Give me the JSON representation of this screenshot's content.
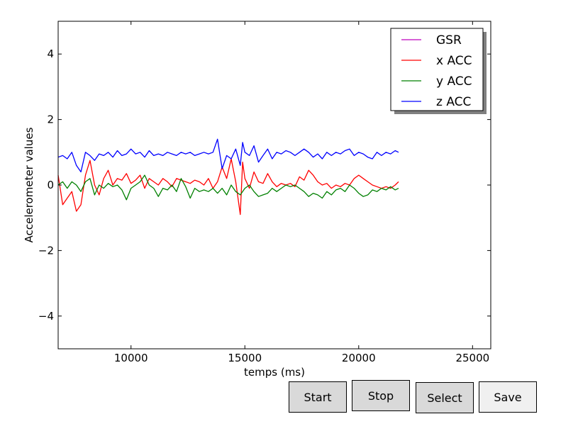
{
  "chart_data": {
    "type": "line",
    "title": "",
    "xlabel": "temps (ms)",
    "ylabel": "Accelerometer values",
    "xlim": [
      6800,
      25800
    ],
    "ylim": [
      -5,
      5
    ],
    "xticks": [
      10000,
      15000,
      20000,
      25000
    ],
    "xtick_labels": [
      "10000",
      "15000",
      "20000",
      "25000"
    ],
    "yticks": [
      -4,
      -2,
      0,
      2,
      4
    ],
    "ytick_labels": [
      "−4",
      "−2",
      "0",
      "2",
      "4"
    ],
    "grid": false,
    "legend_position": "top-right",
    "series": [
      {
        "name": "GSR",
        "color": "#bf00bf",
        "x": [],
        "y": []
      },
      {
        "name": "x ACC",
        "color": "#ff0000",
        "x": [
          6800,
          7000,
          7200,
          7400,
          7600,
          7800,
          8000,
          8200,
          8400,
          8600,
          8800,
          9000,
          9200,
          9400,
          9600,
          9800,
          10000,
          10200,
          10400,
          10600,
          10800,
          11000,
          11200,
          11400,
          11600,
          11800,
          12000,
          12200,
          12400,
          12600,
          12800,
          13000,
          13200,
          13400,
          13600,
          13800,
          14000,
          14200,
          14400,
          14600,
          14800,
          14900,
          15000,
          15200,
          15400,
          15600,
          15800,
          16000,
          16200,
          16400,
          16600,
          16800,
          17000,
          17200,
          17400,
          17600,
          17800,
          18000,
          18200,
          18400,
          18600,
          18800,
          19000,
          19200,
          19400,
          19600,
          19800,
          20000,
          20200,
          20400,
          20600,
          20800,
          21000,
          21200,
          21400,
          21600,
          21750
        ],
        "y": [
          0.3,
          -0.6,
          -0.4,
          -0.2,
          -0.8,
          -0.6,
          0.3,
          0.75,
          0.0,
          -0.3,
          0.2,
          0.45,
          0.0,
          0.2,
          0.15,
          0.35,
          0.05,
          0.15,
          0.3,
          -0.1,
          0.2,
          0.1,
          0.0,
          0.2,
          0.1,
          -0.05,
          0.2,
          0.15,
          0.1,
          0.05,
          0.15,
          0.1,
          0.0,
          0.2,
          -0.1,
          0.1,
          0.55,
          0.2,
          0.8,
          0.1,
          -0.9,
          0.7,
          0.2,
          -0.1,
          0.4,
          0.1,
          0.05,
          0.35,
          0.1,
          -0.05,
          0.05,
          0.0,
          0.05,
          -0.05,
          0.25,
          0.15,
          0.45,
          0.3,
          0.1,
          0.0,
          0.05,
          -0.1,
          0.0,
          -0.05,
          0.05,
          0.0,
          0.2,
          0.3,
          0.2,
          0.1,
          0.0,
          -0.05,
          -0.1,
          -0.05,
          -0.1,
          0.0,
          0.1
        ]
      },
      {
        "name": "y ACC",
        "color": "#008000",
        "x": [
          6800,
          7000,
          7200,
          7400,
          7600,
          7800,
          8000,
          8200,
          8400,
          8600,
          8800,
          9000,
          9200,
          9400,
          9600,
          9800,
          10000,
          10200,
          10400,
          10600,
          10800,
          11000,
          11200,
          11400,
          11600,
          11800,
          12000,
          12200,
          12400,
          12600,
          12800,
          13000,
          13200,
          13400,
          13600,
          13800,
          14000,
          14200,
          14400,
          14600,
          14800,
          15000,
          15200,
          15400,
          15600,
          15800,
          16000,
          16200,
          16400,
          16600,
          16800,
          17000,
          17200,
          17400,
          17600,
          17800,
          18000,
          18200,
          18400,
          18600,
          18800,
          19000,
          19200,
          19400,
          19600,
          19800,
          20000,
          20200,
          20400,
          20600,
          20800,
          21000,
          21200,
          21400,
          21600,
          21750
        ],
        "y": [
          0.0,
          0.1,
          -0.1,
          0.1,
          0.0,
          -0.2,
          0.1,
          0.2,
          -0.3,
          0.0,
          -0.1,
          0.05,
          -0.05,
          0.0,
          -0.15,
          -0.45,
          -0.1,
          0.0,
          0.1,
          0.3,
          0.0,
          -0.1,
          -0.35,
          -0.1,
          -0.15,
          0.0,
          -0.2,
          0.2,
          -0.05,
          -0.4,
          -0.1,
          -0.2,
          -0.15,
          -0.2,
          -0.1,
          -0.25,
          -0.1,
          -0.3,
          0.0,
          -0.2,
          -0.3,
          -0.1,
          0.0,
          -0.2,
          -0.35,
          -0.3,
          -0.25,
          -0.1,
          -0.2,
          -0.1,
          0.0,
          -0.05,
          0.0,
          -0.1,
          -0.2,
          -0.35,
          -0.25,
          -0.3,
          -0.4,
          -0.2,
          -0.3,
          -0.15,
          -0.1,
          -0.2,
          0.0,
          -0.1,
          -0.25,
          -0.35,
          -0.3,
          -0.15,
          -0.2,
          -0.1,
          -0.15,
          -0.05,
          -0.15,
          -0.1
        ]
      },
      {
        "name": "z ACC",
        "color": "#0000ff",
        "x": [
          6800,
          7000,
          7200,
          7400,
          7600,
          7800,
          8000,
          8200,
          8400,
          8600,
          8800,
          9000,
          9200,
          9400,
          9600,
          9800,
          10000,
          10200,
          10400,
          10600,
          10800,
          11000,
          11200,
          11400,
          11600,
          11800,
          12000,
          12200,
          12400,
          12600,
          12800,
          13000,
          13200,
          13400,
          13600,
          13800,
          14000,
          14200,
          14400,
          14600,
          14800,
          14900,
          15000,
          15200,
          15400,
          15600,
          15800,
          16000,
          16200,
          16400,
          16600,
          16800,
          17000,
          17200,
          17400,
          17600,
          17800,
          18000,
          18200,
          18400,
          18600,
          18800,
          19000,
          19200,
          19400,
          19600,
          19800,
          20000,
          20200,
          20400,
          20600,
          20800,
          21000,
          21200,
          21400,
          21600,
          21750
        ],
        "y": [
          0.85,
          0.9,
          0.8,
          1.0,
          0.6,
          0.4,
          1.0,
          0.9,
          0.75,
          0.95,
          0.9,
          1.0,
          0.85,
          1.05,
          0.9,
          0.95,
          1.1,
          0.95,
          1.0,
          0.85,
          1.05,
          0.9,
          0.95,
          0.9,
          1.0,
          0.95,
          0.9,
          1.0,
          0.95,
          1.0,
          0.9,
          0.95,
          1.0,
          0.95,
          1.0,
          1.4,
          0.5,
          0.9,
          0.8,
          1.1,
          0.6,
          1.3,
          1.0,
          0.9,
          1.2,
          0.7,
          0.9,
          1.1,
          0.8,
          1.0,
          0.95,
          1.05,
          1.0,
          0.9,
          1.0,
          1.1,
          1.0,
          0.85,
          0.95,
          0.8,
          1.0,
          0.9,
          1.0,
          0.95,
          1.05,
          1.1,
          0.9,
          1.0,
          0.95,
          0.85,
          0.8,
          1.0,
          0.9,
          1.0,
          0.95,
          1.05,
          1.0
        ]
      }
    ]
  },
  "buttons": {
    "start": "Start",
    "stop": "Stop",
    "select": "Select",
    "save": "Save"
  }
}
